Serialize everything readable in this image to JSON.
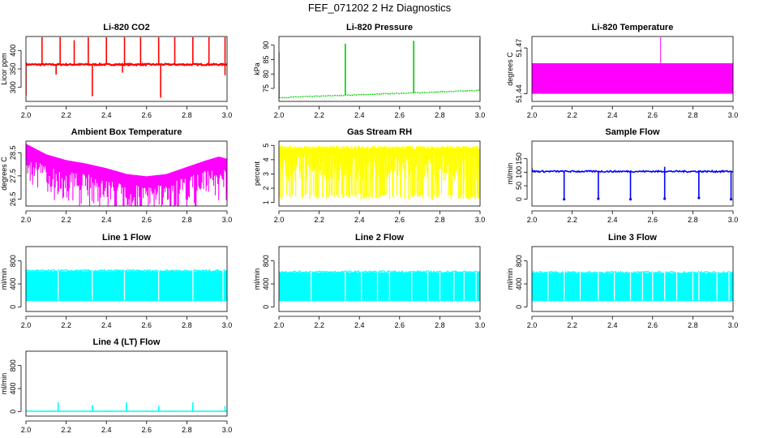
{
  "page_title": "FEF_071202  2 Hz Diagnostics",
  "colors": {
    "red": "#ff0000",
    "green": "#00cc00",
    "magenta": "#ff00ff",
    "yellow": "#ffff00",
    "blue": "#0000ff",
    "cyan": "#00ffff"
  },
  "chart_data": [
    {
      "id": "co2",
      "type": "line",
      "title": "Li-820 CO2",
      "ylabel": "Licor ppm",
      "xlim": [
        2.0,
        3.0
      ],
      "ylim": [
        262,
        438
      ],
      "yticks": [
        "300",
        "350",
        "400"
      ],
      "ytick_values": [
        300,
        350,
        400
      ],
      "color": "red",
      "baseline": 362,
      "noise": 4,
      "spikes_up": [
        [
          2.08,
          436
        ],
        [
          2.17,
          436
        ],
        [
          2.24,
          428
        ],
        [
          2.31,
          436
        ],
        [
          2.4,
          436
        ],
        [
          2.49,
          436
        ],
        [
          2.57,
          436
        ],
        [
          2.66,
          436
        ],
        [
          2.74,
          436
        ],
        [
          2.83,
          436
        ],
        [
          2.91,
          436
        ],
        [
          2.99,
          436
        ]
      ],
      "spikes_down": [
        [
          2.0,
          278
        ],
        [
          2.33,
          276
        ],
        [
          2.67,
          272
        ],
        [
          2.99,
          333
        ],
        [
          2.15,
          335
        ],
        [
          2.48,
          340
        ]
      ]
    },
    {
      "id": "pressure",
      "type": "line",
      "title": "Li-820 Pressure",
      "ylabel": "kPa",
      "xlim": [
        2.0,
        3.0
      ],
      "ylim": [
        70.5,
        93
      ],
      "yticks": [
        "75",
        "80",
        "85",
        "90"
      ],
      "ytick_values": [
        75,
        80,
        85,
        90
      ],
      "color": "green",
      "start": 71.8,
      "end": 74.3,
      "spikes_up": [
        [
          2.0,
          87.5
        ],
        [
          2.33,
          90.5
        ],
        [
          2.67,
          91.5
        ],
        [
          3.0,
          92
        ]
      ]
    },
    {
      "id": "licor_temp",
      "type": "area",
      "title": "Li-820 Temperature",
      "ylabel": "degrees C",
      "xlim": [
        2.0,
        3.0
      ],
      "ylim": [
        51.435,
        51.4775
      ],
      "yticks": [
        "51.44",
        "51.47"
      ],
      "ytick_values": [
        51.44,
        51.47
      ],
      "color": "magenta",
      "low": 51.44,
      "high": 51.46,
      "spikes_up": [
        [
          2.64,
          51.477
        ]
      ]
    },
    {
      "id": "ambient_temp",
      "type": "line",
      "title": "Ambient Box Temperature",
      "ylabel": "degrees C",
      "xlim": [
        2.0,
        3.0
      ],
      "ylim": [
        26.2,
        29.0
      ],
      "yticks": [
        "26.5",
        "27.5",
        "28.5"
      ],
      "ytick_values": [
        26.5,
        27.5,
        28.5
      ],
      "color": "magenta",
      "curve": [
        [
          2.0,
          28.75
        ],
        [
          2.1,
          28.3
        ],
        [
          2.2,
          28.05
        ],
        [
          2.3,
          27.9
        ],
        [
          2.4,
          27.7
        ],
        [
          2.5,
          27.45
        ],
        [
          2.6,
          27.35
        ],
        [
          2.7,
          27.45
        ],
        [
          2.8,
          27.75
        ],
        [
          2.9,
          28.05
        ],
        [
          2.96,
          28.2
        ],
        [
          3.0,
          28.1
        ]
      ],
      "dip": 1.3
    },
    {
      "id": "rh",
      "type": "line",
      "title": "Gas Stream RH",
      "ylabel": "percent",
      "xlim": [
        2.0,
        3.0
      ],
      "ylim": [
        0.75,
        5.3
      ],
      "yticks": [
        "1",
        "2",
        "3",
        "4",
        "5"
      ],
      "ytick_values": [
        1,
        2,
        3,
        4,
        5
      ],
      "color": "yellow",
      "high": 4.85,
      "low": 1.2
    },
    {
      "id": "sample_flow",
      "type": "line",
      "title": "Sample Flow",
      "ylabel": "ml/min",
      "xlim": [
        2.0,
        3.0
      ],
      "ylim": [
        -25,
        215
      ],
      "yticks": [
        "0",
        "50",
        "100",
        "150"
      ],
      "ytick_values": [
        0,
        50,
        100,
        150
      ],
      "color": "blue",
      "baseline": 103,
      "spikes_down": [
        [
          2.16,
          0
        ],
        [
          2.33,
          2
        ],
        [
          2.49,
          0
        ],
        [
          2.66,
          2
        ],
        [
          2.83,
          5
        ],
        [
          2.99,
          0
        ]
      ],
      "spikes_up": [
        [
          2.0,
          115
        ],
        [
          2.66,
          120
        ]
      ]
    },
    {
      "id": "line1",
      "type": "area",
      "title": "Line 1 Flow",
      "ylabel": "ml/min",
      "xlim": [
        2.0,
        3.0
      ],
      "ylim": [
        -80,
        1050
      ],
      "yticks": [
        "0",
        "400",
        "800"
      ],
      "ytick_values": [
        0,
        400,
        800
      ],
      "color": "cyan",
      "low": 100,
      "high": 620,
      "gaps": [
        2.16,
        2.33,
        2.49,
        2.66,
        2.83,
        2.98
      ]
    },
    {
      "id": "line2",
      "type": "area",
      "title": "Line 2 Flow",
      "ylabel": "ml/min",
      "xlim": [
        2.0,
        3.0
      ],
      "ylim": [
        -80,
        1050
      ],
      "yticks": [
        "0",
        "400",
        "800"
      ],
      "ytick_values": [
        0,
        400,
        800
      ],
      "color": "cyan",
      "low": 100,
      "high": 600,
      "gaps": [
        2.16,
        2.33,
        2.41,
        2.49,
        2.55,
        2.66,
        2.74,
        2.8,
        2.87,
        2.92,
        2.98
      ]
    },
    {
      "id": "line3",
      "type": "area",
      "title": "Line 3 Flow",
      "ylabel": "ml/min",
      "xlim": [
        2.0,
        3.0
      ],
      "ylim": [
        -80,
        1050
      ],
      "yticks": [
        "0",
        "400",
        "800"
      ],
      "ytick_values": [
        0,
        400,
        800
      ],
      "color": "cyan",
      "low": 100,
      "high": 590,
      "gaps": [
        2.08,
        2.16,
        2.24,
        2.33,
        2.41,
        2.49,
        2.55,
        2.6,
        2.66,
        2.72,
        2.8,
        2.83,
        2.92,
        2.98
      ]
    },
    {
      "id": "line4",
      "type": "line",
      "title": "Line 4 (LT) Flow",
      "ylabel": "ml/min",
      "xlim": [
        2.0,
        3.0
      ],
      "ylim": [
        -80,
        1050
      ],
      "yticks": [
        "0",
        "400",
        "800"
      ],
      "ytick_values": [
        0,
        400,
        800
      ],
      "color": "cyan",
      "baseline": 5,
      "spikes_up": [
        [
          2.16,
          160
        ],
        [
          2.33,
          110
        ],
        [
          2.5,
          160
        ],
        [
          2.66,
          95
        ],
        [
          2.83,
          160
        ],
        [
          2.99,
          95
        ]
      ]
    }
  ],
  "xticks": [
    "2.0",
    "2.2",
    "2.4",
    "2.6",
    "2.8",
    "3.0"
  ],
  "xtick_values": [
    2.0,
    2.2,
    2.4,
    2.6,
    2.8,
    3.0
  ]
}
